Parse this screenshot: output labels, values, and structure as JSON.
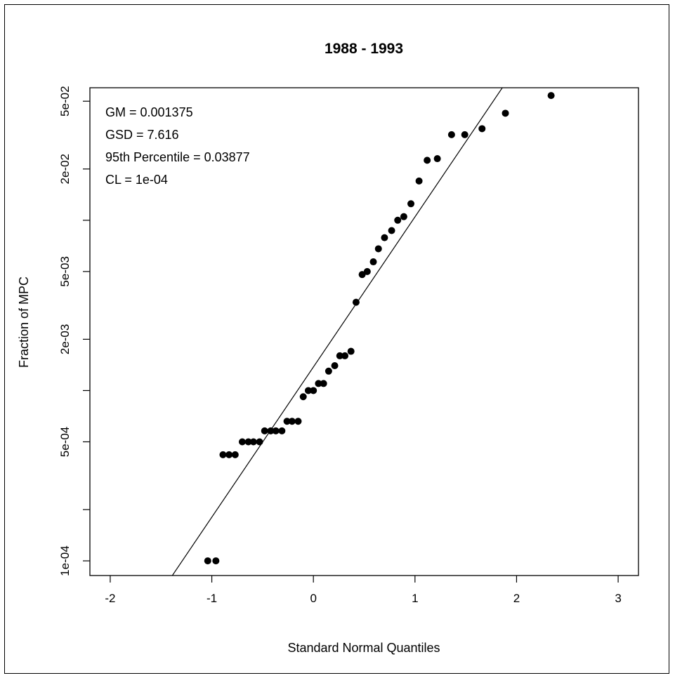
{
  "chart_data": {
    "type": "scatter",
    "title": "1988 - 1993",
    "xlabel": "Standard Normal Quantiles",
    "ylabel": "Fraction of MPC",
    "y_scale": "log",
    "xlim": [
      -2.2,
      3.2
    ],
    "ylim": [
      8.2e-05,
      0.06
    ],
    "x_ticks": [
      -2,
      -1,
      0,
      1,
      2,
      3
    ],
    "x_tick_labels": [
      "-2",
      "-1",
      "0",
      "1",
      "2",
      "3"
    ],
    "y_ticks": [
      0.0001,
      0.0002,
      0.0005,
      0.001,
      0.002,
      0.005,
      0.01,
      0.02,
      0.05
    ],
    "y_tick_labels": [
      "1e-04",
      "",
      "5e-04",
      "",
      "2e-03",
      "5e-03",
      "",
      "2e-02",
      "5e-02"
    ],
    "annotations": [
      "GM = 0.001375",
      "GSD = 7.616",
      "95th Percentile =  0.03877",
      "CL =  1e-04"
    ],
    "fit_line": {
      "gm": 0.001375,
      "gsd": 7.616
    },
    "points": {
      "x": [
        -1.04,
        -0.96,
        -0.89,
        -0.83,
        -0.77,
        -0.7,
        -0.64,
        -0.59,
        -0.53,
        -0.48,
        -0.42,
        -0.37,
        -0.31,
        -0.26,
        -0.21,
        -0.15,
        -0.1,
        -0.05,
        0.0,
        0.05,
        0.1,
        0.15,
        0.21,
        0.26,
        0.31,
        0.37,
        0.42,
        0.48,
        0.53,
        0.59,
        0.64,
        0.7,
        0.77,
        0.83,
        0.89,
        0.96,
        1.04,
        1.12,
        1.22,
        1.36,
        1.49,
        1.66,
        1.89,
        2.34
      ],
      "y": [
        0.0001,
        0.0001,
        0.00042,
        0.00042,
        0.00042,
        0.0005,
        0.0005,
        0.0005,
        0.0005,
        0.00058,
        0.00058,
        0.00058,
        0.00058,
        0.00066,
        0.00066,
        0.00066,
        0.00092,
        0.001,
        0.001,
        0.0011,
        0.0011,
        0.0013,
        0.0014,
        0.0016,
        0.0016,
        0.0017,
        0.0033,
        0.0048,
        0.005,
        0.0057,
        0.0068,
        0.0079,
        0.0087,
        0.01,
        0.0105,
        0.0125,
        0.017,
        0.0225,
        0.023,
        0.0318,
        0.0318,
        0.0345,
        0.0425,
        0.054
      ]
    }
  }
}
